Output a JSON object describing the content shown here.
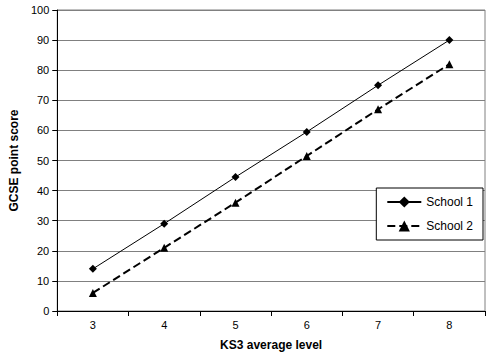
{
  "chart_data": {
    "type": "line",
    "x_label": "KS3 average level",
    "y_label": "GCSE point score",
    "categories": [
      "3",
      "4",
      "5",
      "6",
      "7",
      "8"
    ],
    "series": [
      {
        "name": "School 1",
        "color": "#000000",
        "marker": "diamond",
        "line_style": "solid",
        "values": [
          14,
          29,
          44.5,
          59.5,
          75,
          90
        ]
      },
      {
        "name": "School 2",
        "color": "#000000",
        "marker": "triangle",
        "line_style": "dashed",
        "values": [
          6,
          21,
          36,
          51.5,
          67,
          82
        ]
      }
    ],
    "ylim": [
      0,
      100
    ],
    "yticks": [
      0,
      10,
      20,
      30,
      40,
      50,
      60,
      70,
      80,
      90,
      100
    ],
    "grid": true,
    "legend": "right"
  }
}
